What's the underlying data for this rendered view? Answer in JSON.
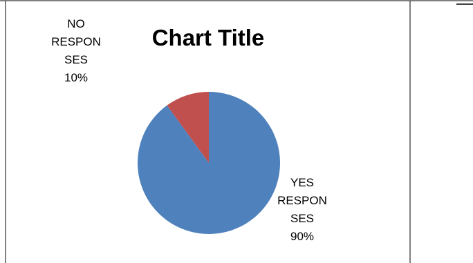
{
  "chart_data": {
    "type": "pie",
    "title": "Chart Title",
    "categories": [
      "YES RESPONSES",
      "NO RESPONSES"
    ],
    "values": [
      90,
      10
    ],
    "colors": [
      "#4f81bd",
      "#c0504d"
    ],
    "data_labels": [
      {
        "lines": [
          "YES",
          "RESPON",
          "SES",
          "90%"
        ]
      },
      {
        "lines": [
          "NO",
          "RESPON",
          "SES",
          "10%"
        ]
      }
    ],
    "start_angle_deg": 0,
    "direction": "clockwise",
    "legend": "none"
  }
}
